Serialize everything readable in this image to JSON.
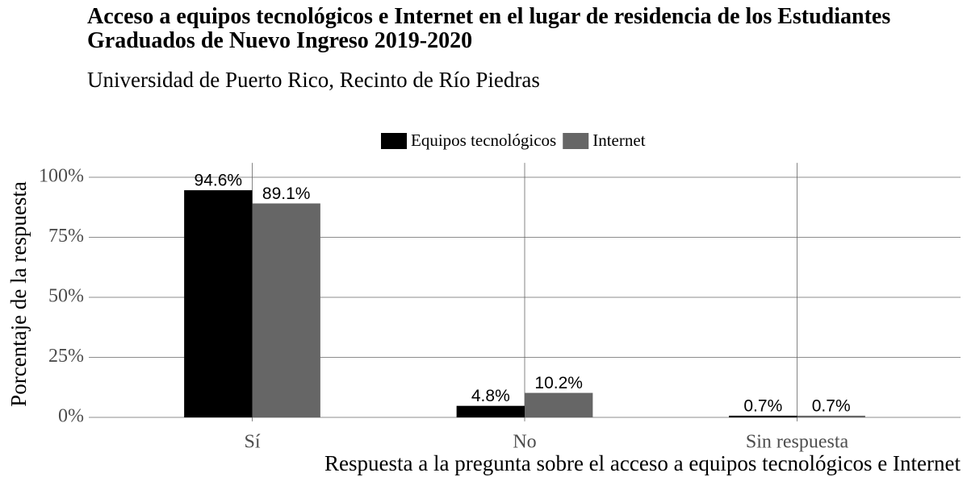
{
  "chart_data": {
    "type": "bar",
    "title": "Acceso a equipos tecnológicos e Internet en el lugar de residencia de los Estudiantes Graduados de Nuevo Ingreso 2019-2020",
    "subtitle": "Universidad de Puerto Rico, Recinto de Río Piedras",
    "x_label": "Respuesta a la pregunta sobre el acceso a equipos tecnológicos e Internet",
    "y_label": "Porcentaje de la respuesta",
    "categories": [
      "Sí",
      "No",
      "Sin respuesta"
    ],
    "series": [
      {
        "name": "Equipos tecnológicos",
        "color": "#000000",
        "values": [
          94.6,
          4.8,
          0.7
        ],
        "value_labels": [
          "94.6%",
          "4.8%",
          "0.7%"
        ]
      },
      {
        "name": "Internet",
        "color": "#666666",
        "values": [
          89.1,
          10.2,
          0.7
        ],
        "value_labels": [
          "89.1%",
          "10.2%",
          "0.7%"
        ]
      }
    ],
    "ylim": [
      0,
      106
    ],
    "yticks": [
      {
        "value": 0,
        "label": "0%"
      },
      {
        "value": 25,
        "label": "25%"
      },
      {
        "value": 50,
        "label": "50%"
      },
      {
        "value": 75,
        "label": "75%"
      },
      {
        "value": 100,
        "label": "100%"
      }
    ],
    "grid": true,
    "legend": "top"
  }
}
